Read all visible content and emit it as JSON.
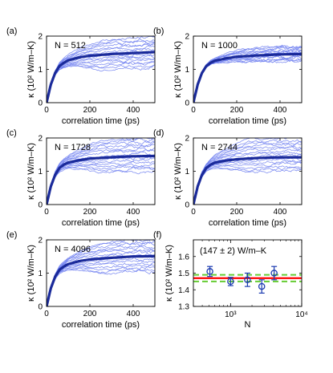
{
  "chart_data": [
    {
      "panel_label": "(a)",
      "type": "line",
      "annotation": "N = 512",
      "xlabel": "correlation time (ps)",
      "ylabel": "κ (10² W/m–K)",
      "xlim": [
        0,
        500
      ],
      "ylim": [
        0,
        2
      ],
      "xticks": [
        0,
        200,
        400
      ],
      "yticks": [
        0,
        1,
        2
      ],
      "thin_line_count": 16,
      "mean_series": {
        "x": [
          0,
          20,
          40,
          60,
          80,
          100,
          150,
          200,
          300,
          400,
          500
        ],
        "y": [
          0,
          0.55,
          0.9,
          1.1,
          1.2,
          1.27,
          1.36,
          1.41,
          1.46,
          1.49,
          1.52
        ]
      },
      "thin_spread_at_500": [
        1.05,
        1.95
      ],
      "colors": {
        "thin": "#6f7ff0",
        "mean": "#1a2a9a"
      }
    },
    {
      "panel_label": "(b)",
      "type": "line",
      "annotation": "N = 1000",
      "xlabel": "correlation time (ps)",
      "ylabel": "κ (10² W/m–K)",
      "xlim": [
        0,
        500
      ],
      "ylim": [
        0,
        2
      ],
      "xticks": [
        0,
        200,
        400
      ],
      "yticks": [
        0,
        1,
        2
      ],
      "thin_line_count": 16,
      "mean_series": {
        "x": [
          0,
          20,
          40,
          60,
          80,
          100,
          150,
          200,
          300,
          400,
          500
        ],
        "y": [
          0,
          0.55,
          0.9,
          1.1,
          1.2,
          1.26,
          1.33,
          1.38,
          1.42,
          1.45,
          1.46
        ]
      },
      "thin_spread_at_500": [
        1.25,
        1.7
      ],
      "colors": {
        "thin": "#6f7ff0",
        "mean": "#1a2a9a"
      }
    },
    {
      "panel_label": "(c)",
      "type": "line",
      "annotation": "N = 1728",
      "xlabel": "correlation time (ps)",
      "ylabel": "κ (10² W/m–K)",
      "xlim": [
        0,
        500
      ],
      "ylim": [
        0,
        2
      ],
      "xticks": [
        0,
        200,
        400
      ],
      "yticks": [
        0,
        1,
        2
      ],
      "thin_line_count": 16,
      "mean_series": {
        "x": [
          0,
          20,
          40,
          60,
          80,
          100,
          150,
          200,
          300,
          400,
          500
        ],
        "y": [
          0,
          0.55,
          0.9,
          1.1,
          1.2,
          1.26,
          1.33,
          1.38,
          1.42,
          1.45,
          1.46
        ]
      },
      "thin_spread_at_500": [
        1.0,
        2.0
      ],
      "colors": {
        "thin": "#6f7ff0",
        "mean": "#1a2a9a"
      }
    },
    {
      "panel_label": "(d)",
      "type": "line",
      "annotation": "N = 2744",
      "xlabel": "correlation time (ps)",
      "ylabel": "κ (10² W/m–K)",
      "xlim": [
        0,
        500
      ],
      "ylim": [
        0,
        2
      ],
      "xticks": [
        0,
        200,
        400
      ],
      "yticks": [
        0,
        1,
        2
      ],
      "thin_line_count": 16,
      "mean_series": {
        "x": [
          0,
          20,
          40,
          60,
          80,
          100,
          150,
          200,
          300,
          400,
          500
        ],
        "y": [
          0,
          0.55,
          0.9,
          1.1,
          1.2,
          1.26,
          1.32,
          1.36,
          1.4,
          1.42,
          1.42
        ]
      },
      "thin_spread_at_500": [
        1.0,
        2.0
      ],
      "colors": {
        "thin": "#6f7ff0",
        "mean": "#1a2a9a"
      }
    },
    {
      "panel_label": "(e)",
      "type": "line",
      "annotation": "N = 4096",
      "xlabel": "correlation time (ps)",
      "ylabel": "κ (10² W/m–K)",
      "xlim": [
        0,
        500
      ],
      "ylim": [
        0,
        2
      ],
      "xticks": [
        0,
        200,
        400
      ],
      "yticks": [
        0,
        1,
        2
      ],
      "thin_line_count": 16,
      "mean_series": {
        "x": [
          0,
          20,
          40,
          60,
          80,
          100,
          150,
          200,
          300,
          400,
          500
        ],
        "y": [
          0,
          0.55,
          0.9,
          1.1,
          1.2,
          1.27,
          1.36,
          1.41,
          1.46,
          1.5,
          1.51
        ]
      },
      "thin_spread_at_500": [
        1.05,
        2.0
      ],
      "colors": {
        "thin": "#6f7ff0",
        "mean": "#1a2a9a"
      }
    },
    {
      "panel_label": "(f)",
      "type": "scatter",
      "annotation": "(147 ± 2) W/m–K",
      "xlabel": "N",
      "ylabel": "κ (10² W/m–K)",
      "xscale": "log",
      "xlim": [
        300,
        10000
      ],
      "ylim": [
        1.3,
        1.7
      ],
      "yticks": [
        1.3,
        1.4,
        1.5,
        1.6
      ],
      "xticks_labels": [
        "10³",
        "10⁴"
      ],
      "points": [
        {
          "x": 512,
          "y": 1.51,
          "err": 0.03
        },
        {
          "x": 1000,
          "y": 1.45,
          "err": 0.025
        },
        {
          "x": 1728,
          "y": 1.46,
          "err": 0.04
        },
        {
          "x": 2744,
          "y": 1.42,
          "err": 0.04
        },
        {
          "x": 4096,
          "y": 1.5,
          "err": 0.04
        }
      ],
      "reference_line": {
        "y": 1.47,
        "color": "#ff0000"
      },
      "band_lines": [
        {
          "y": 1.49,
          "color": "#66cc33"
        },
        {
          "y": 1.45,
          "color": "#66cc33"
        }
      ],
      "colors": {
        "points": "#1a3ab0"
      }
    }
  ]
}
